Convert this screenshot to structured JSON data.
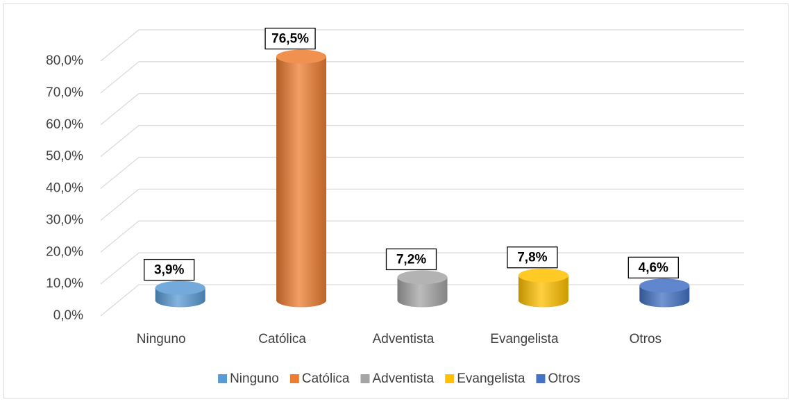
{
  "chart_data": {
    "type": "bar",
    "categories": [
      "Ninguno",
      "Católica",
      "Adventista",
      "Evangelista",
      "Otros"
    ],
    "values": [
      3.9,
      76.5,
      7.2,
      7.8,
      4.6
    ],
    "value_labels": [
      "3,9%",
      "76,5%",
      "7,2%",
      "7,8%",
      "4,6%"
    ],
    "colors": [
      "#5b9bd5",
      "#ed7d31",
      "#a5a5a5",
      "#ffc000",
      "#4472c4"
    ],
    "ylim": [
      0,
      80
    ],
    "yticks": [
      {
        "value": 0,
        "label": "0,0%"
      },
      {
        "value": 10,
        "label": "10,0%"
      },
      {
        "value": 20,
        "label": "20,0%"
      },
      {
        "value": 30,
        "label": "30,0%"
      },
      {
        "value": 40,
        "label": "40,0%"
      },
      {
        "value": 50,
        "label": "50,0%"
      },
      {
        "value": 60,
        "label": "60,0%"
      },
      {
        "value": 70,
        "label": "70,0%"
      },
      {
        "value": 80,
        "label": "80,0%"
      }
    ],
    "grid": true,
    "legend": "bottom"
  }
}
